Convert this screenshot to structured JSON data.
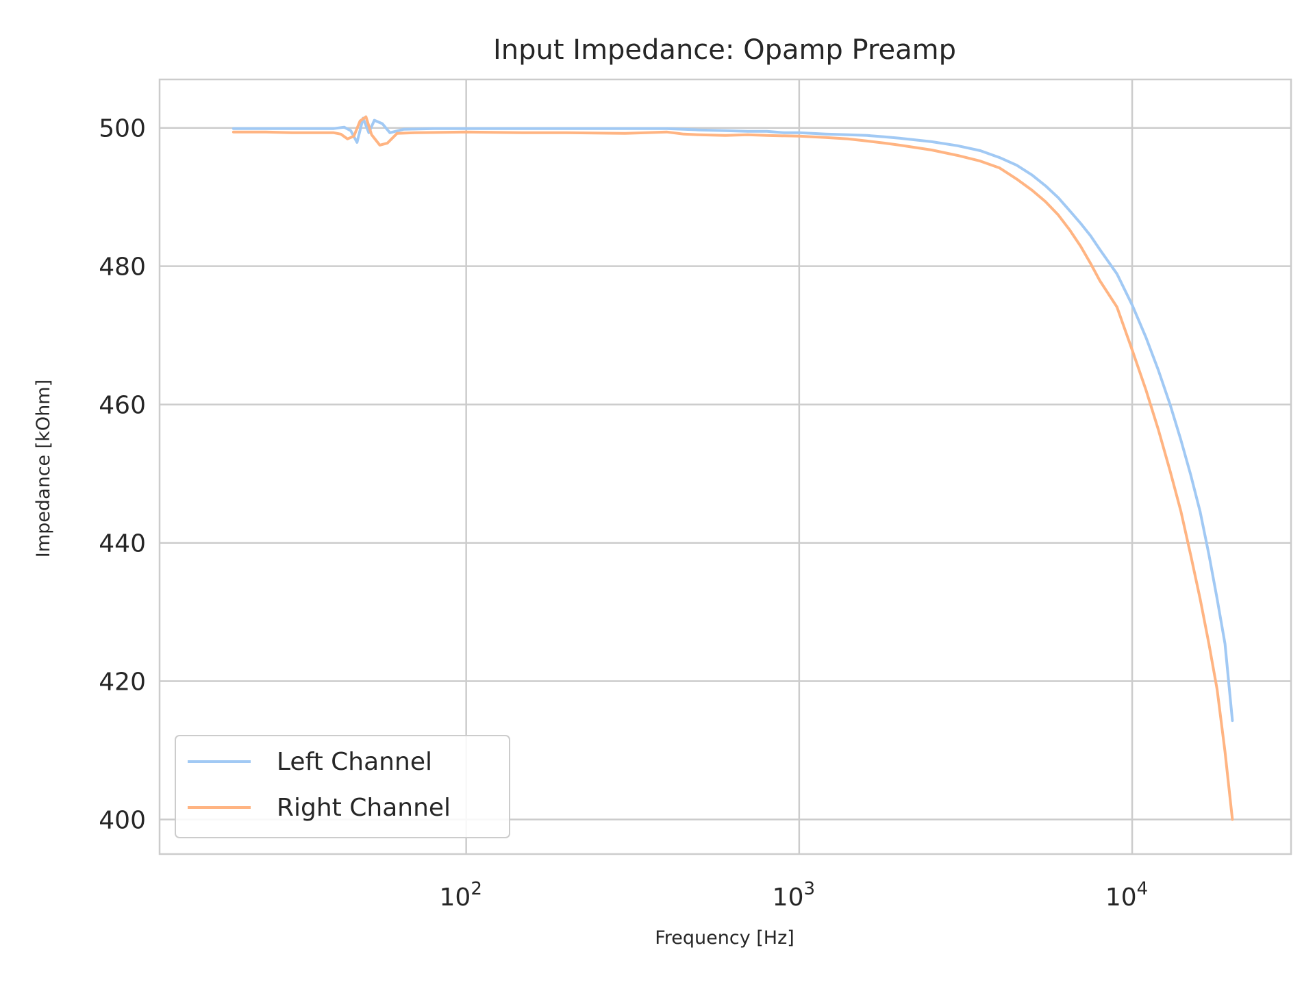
{
  "chart_data": {
    "type": "line",
    "title": "Input Impedance: Opamp Preamp",
    "xlabel": "Frequency [Hz]",
    "ylabel": "Impedance [kOhm]",
    "x_scale": "log",
    "xlim": [
      12,
      30000
    ],
    "ylim": [
      395,
      507
    ],
    "x_ticks": [
      {
        "value": 100,
        "base": "10",
        "exp": "2"
      },
      {
        "value": 1000,
        "base": "10",
        "exp": "3"
      },
      {
        "value": 10000,
        "base": "10",
        "exp": "4"
      }
    ],
    "y_ticks": [
      400,
      420,
      440,
      460,
      480,
      500
    ],
    "grid": true,
    "legend_position": "lower-left",
    "series": [
      {
        "name": "Left Channel",
        "color": "#a1c9f4",
        "points": [
          [
            20,
            499.9
          ],
          [
            25,
            499.9
          ],
          [
            30,
            499.9
          ],
          [
            35,
            499.9
          ],
          [
            40,
            499.9
          ],
          [
            43,
            500.1
          ],
          [
            45,
            499.6
          ],
          [
            47,
            497.9
          ],
          [
            49,
            501.4
          ],
          [
            51,
            499.3
          ],
          [
            53,
            501.1
          ],
          [
            56,
            500.6
          ],
          [
            59,
            499.3
          ],
          [
            65,
            499.8
          ],
          [
            80,
            499.9
          ],
          [
            100,
            499.9
          ],
          [
            150,
            499.9
          ],
          [
            200,
            499.9
          ],
          [
            300,
            499.9
          ],
          [
            400,
            499.9
          ],
          [
            500,
            499.7
          ],
          [
            600,
            499.6
          ],
          [
            700,
            499.5
          ],
          [
            800,
            499.5
          ],
          [
            900,
            499.3
          ],
          [
            1000,
            499.3
          ],
          [
            1200,
            499.1
          ],
          [
            1400,
            499.0
          ],
          [
            1600,
            498.9
          ],
          [
            1800,
            498.7
          ],
          [
            2000,
            498.5
          ],
          [
            2500,
            498.0
          ],
          [
            3000,
            497.4
          ],
          [
            3500,
            496.7
          ],
          [
            4000,
            495.7
          ],
          [
            4500,
            494.6
          ],
          [
            5000,
            493.2
          ],
          [
            5500,
            491.6
          ],
          [
            6000,
            489.9
          ],
          [
            6500,
            488.0
          ],
          [
            7000,
            486.2
          ],
          [
            7500,
            484.4
          ],
          [
            8000,
            482.4
          ],
          [
            9000,
            478.9
          ],
          [
            10000,
            474.4
          ],
          [
            11000,
            469.7
          ],
          [
            12000,
            464.9
          ],
          [
            13000,
            460.0
          ],
          [
            14000,
            454.9
          ],
          [
            15000,
            449.8
          ],
          [
            16000,
            444.5
          ],
          [
            17000,
            438.3
          ],
          [
            18000,
            431.9
          ],
          [
            19000,
            425.4
          ],
          [
            20000,
            414.3
          ]
        ]
      },
      {
        "name": "Right Channel",
        "color": "#ffb482",
        "points": [
          [
            20,
            499.4
          ],
          [
            25,
            499.4
          ],
          [
            30,
            499.3
          ],
          [
            35,
            499.3
          ],
          [
            40,
            499.3
          ],
          [
            42,
            499.1
          ],
          [
            44,
            498.4
          ],
          [
            46,
            498.8
          ],
          [
            48,
            501.0
          ],
          [
            50,
            501.6
          ],
          [
            52,
            499.0
          ],
          [
            55,
            497.5
          ],
          [
            58,
            497.8
          ],
          [
            62,
            499.2
          ],
          [
            70,
            499.3
          ],
          [
            100,
            499.4
          ],
          [
            150,
            499.3
          ],
          [
            200,
            499.3
          ],
          [
            300,
            499.2
          ],
          [
            400,
            499.4
          ],
          [
            450,
            499.1
          ],
          [
            500,
            499.0
          ],
          [
            600,
            498.9
          ],
          [
            700,
            499.0
          ],
          [
            800,
            498.9
          ],
          [
            1000,
            498.8
          ],
          [
            1200,
            498.6
          ],
          [
            1400,
            498.4
          ],
          [
            1600,
            498.1
          ],
          [
            1800,
            497.8
          ],
          [
            2000,
            497.5
          ],
          [
            2500,
            496.8
          ],
          [
            3000,
            496.0
          ],
          [
            3500,
            495.2
          ],
          [
            4000,
            494.2
          ],
          [
            4500,
            492.6
          ],
          [
            5000,
            491.0
          ],
          [
            5500,
            489.3
          ],
          [
            6000,
            487.4
          ],
          [
            6500,
            485.2
          ],
          [
            7000,
            482.9
          ],
          [
            7500,
            480.4
          ],
          [
            8000,
            477.9
          ],
          [
            9000,
            474.1
          ],
          [
            10000,
            467.9
          ],
          [
            11000,
            462.1
          ],
          [
            12000,
            456.3
          ],
          [
            13000,
            450.4
          ],
          [
            14000,
            444.6
          ],
          [
            15000,
            438.2
          ],
          [
            16000,
            431.9
          ],
          [
            17000,
            425.4
          ],
          [
            18000,
            418.8
          ],
          [
            19000,
            409.8
          ],
          [
            20000,
            400.0
          ]
        ]
      }
    ]
  }
}
